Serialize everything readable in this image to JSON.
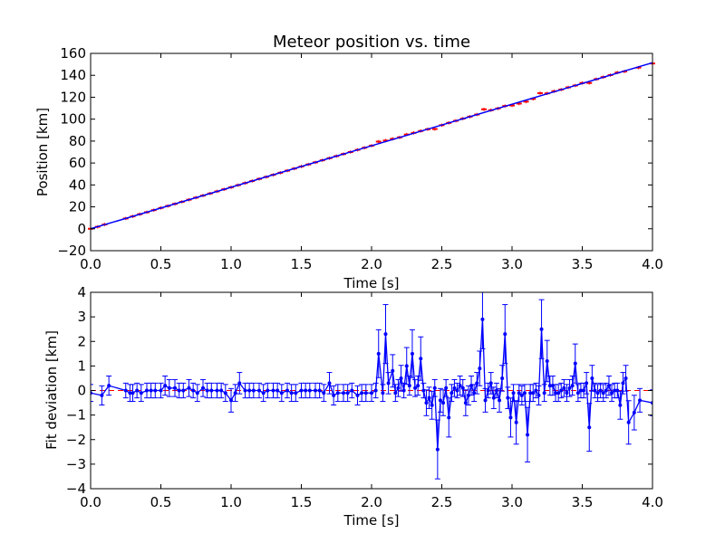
{
  "chart_data": [
    {
      "type": "line",
      "title": "Meteor position vs. time",
      "xlabel": "Time [s]",
      "ylabel": "Position [km]",
      "xlim": [
        0.0,
        4.0
      ],
      "ylim": [
        -20,
        160
      ],
      "xticks": [
        "0.0",
        "0.5",
        "1.0",
        "1.5",
        "2.0",
        "2.5",
        "3.0",
        "3.5",
        "4.0"
      ],
      "yticks": [
        "−20",
        "0",
        "20",
        "40",
        "60",
        "80",
        "100",
        "120",
        "140",
        "160"
      ],
      "grid": false,
      "series": [
        {
          "style": "fit-line",
          "color": "#0000ff",
          "x": [
            0.0,
            4.0
          ],
          "y": [
            0.0,
            151.5
          ]
        },
        {
          "style": "points-with-errorbars",
          "color": "#ff0000",
          "x": [
            0.0,
            0.05,
            0.1,
            0.25,
            0.3,
            0.35,
            0.4,
            0.45,
            0.5,
            0.55,
            0.6,
            0.65,
            0.7,
            0.75,
            0.8,
            0.85,
            0.9,
            0.95,
            1.0,
            1.05,
            1.1,
            1.15,
            1.2,
            1.25,
            1.3,
            1.35,
            1.4,
            1.45,
            1.5,
            1.55,
            1.6,
            1.65,
            1.7,
            1.75,
            1.8,
            1.85,
            1.9,
            1.95,
            2.0,
            2.05,
            2.1,
            2.15,
            2.2,
            2.25,
            2.3,
            2.35,
            2.4,
            2.45,
            2.5,
            2.55,
            2.6,
            2.65,
            2.7,
            2.75,
            2.8,
            2.85,
            2.9,
            2.95,
            3.0,
            3.05,
            3.1,
            3.15,
            3.2,
            3.25,
            3.3,
            3.35,
            3.4,
            3.45,
            3.5,
            3.55,
            3.6,
            3.65,
            3.7,
            3.75,
            3.8,
            3.9,
            4.0
          ],
          "y": [
            0.0,
            1.8,
            3.9,
            9.4,
            11.3,
            13.3,
            15.1,
            17.0,
            19.0,
            20.8,
            22.7,
            24.6,
            26.5,
            28.4,
            30.3,
            32.2,
            34.1,
            36.0,
            37.8,
            39.8,
            41.7,
            43.6,
            45.5,
            47.3,
            49.2,
            51.1,
            53.0,
            54.9,
            56.8,
            58.7,
            60.6,
            62.5,
            64.4,
            66.3,
            68.2,
            70.0,
            72.0,
            73.9,
            75.8,
            79.5,
            80.5,
            82.0,
            83.4,
            86.0,
            87.5,
            89.2,
            90.8,
            91.0,
            94.5,
            96.6,
            98.5,
            100.5,
            102.3,
            104.2,
            109.0,
            108.2,
            109.8,
            112.0,
            112.5,
            114.2,
            116.0,
            118.5,
            123.7,
            123.5,
            125.5,
            127.0,
            129.0,
            130.7,
            133.0,
            133.0,
            136.5,
            138.4,
            140.2,
            142.5,
            143.5,
            147.0,
            150.8
          ]
        }
      ]
    },
    {
      "type": "line",
      "title": "",
      "xlabel": "Time [s]",
      "ylabel": "Fit deviation [km]",
      "xlim": [
        0.0,
        4.0
      ],
      "ylim": [
        -4,
        4
      ],
      "xticks": [
        "0.0",
        "0.5",
        "1.0",
        "1.5",
        "2.0",
        "2.5",
        "3.0",
        "3.5",
        "4.0"
      ],
      "yticks": [
        "−4",
        "−3",
        "−2",
        "−1",
        "0",
        "1",
        "2",
        "3",
        "4"
      ],
      "grid": false,
      "reference_line": {
        "y": 0,
        "color": "#ff0000",
        "style": "dashed"
      },
      "series": [
        {
          "style": "line-with-errorbars",
          "color": "#0000ff",
          "x": [
            0.0,
            0.08,
            0.13,
            0.25,
            0.28,
            0.3,
            0.33,
            0.36,
            0.4,
            0.43,
            0.46,
            0.5,
            0.53,
            0.56,
            0.6,
            0.63,
            0.66,
            0.7,
            0.73,
            0.76,
            0.8,
            0.83,
            0.86,
            0.9,
            0.93,
            0.96,
            1.0,
            1.03,
            1.06,
            1.1,
            1.13,
            1.16,
            1.2,
            1.23,
            1.26,
            1.3,
            1.33,
            1.36,
            1.4,
            1.43,
            1.46,
            1.5,
            1.53,
            1.56,
            1.6,
            1.63,
            1.66,
            1.7,
            1.73,
            1.76,
            1.8,
            1.83,
            1.86,
            1.9,
            1.93,
            1.96,
            2.0,
            2.03,
            2.05,
            2.08,
            2.1,
            2.12,
            2.15,
            2.17,
            2.19,
            2.21,
            2.23,
            2.25,
            2.27,
            2.29,
            2.31,
            2.33,
            2.35,
            2.37,
            2.39,
            2.41,
            2.43,
            2.45,
            2.47,
            2.49,
            2.51,
            2.53,
            2.55,
            2.57,
            2.59,
            2.61,
            2.63,
            2.65,
            2.67,
            2.69,
            2.71,
            2.73,
            2.75,
            2.77,
            2.79,
            2.81,
            2.83,
            2.85,
            2.87,
            2.89,
            2.91,
            2.93,
            2.95,
            2.97,
            2.99,
            3.01,
            3.03,
            3.05,
            3.07,
            3.09,
            3.11,
            3.13,
            3.15,
            3.17,
            3.19,
            3.21,
            3.23,
            3.25,
            3.27,
            3.29,
            3.31,
            3.33,
            3.35,
            3.37,
            3.39,
            3.41,
            3.43,
            3.45,
            3.47,
            3.49,
            3.51,
            3.53,
            3.55,
            3.57,
            3.59,
            3.61,
            3.63,
            3.65,
            3.67,
            3.69,
            3.71,
            3.73,
            3.75,
            3.77,
            3.79,
            3.81,
            3.83,
            3.87,
            3.91,
            4.0
          ],
          "y": [
            -0.1,
            -0.2,
            0.2,
            0.0,
            -0.1,
            -0.1,
            0.0,
            -0.1,
            0.0,
            0.0,
            0.0,
            0.0,
            0.2,
            0.1,
            0.1,
            0.0,
            0.0,
            0.1,
            0.0,
            -0.1,
            0.1,
            0.0,
            0.0,
            0.0,
            0.0,
            -0.1,
            -0.4,
            -0.1,
            0.3,
            0.0,
            0.0,
            0.0,
            0.0,
            -0.1,
            0.0,
            0.0,
            0.0,
            -0.1,
            0.0,
            -0.1,
            -0.1,
            0.0,
            0.0,
            0.0,
            0.0,
            0.0,
            -0.1,
            0.3,
            -0.2,
            -0.1,
            -0.1,
            -0.1,
            0.0,
            -0.2,
            -0.1,
            -0.1,
            -0.1,
            0.0,
            1.5,
            -0.1,
            2.3,
            0.3,
            0.8,
            -0.1,
            0.1,
            0.5,
            0.0,
            1.0,
            0.2,
            1.5,
            0.1,
            0.2,
            1.3,
            0.0,
            -0.5,
            -0.3,
            -0.6,
            0.1,
            -2.4,
            -0.4,
            -0.5,
            0.1,
            -1.1,
            -0.1,
            0.1,
            0.0,
            0.2,
            0.1,
            -0.5,
            -0.2,
            0.2,
            -0.1,
            0.3,
            0.9,
            2.9,
            -0.4,
            0.0,
            0.3,
            -0.3,
            0.0,
            -0.4,
            0.5,
            2.3,
            -0.3,
            -1.1,
            -0.1,
            -1.3,
            -0.1,
            -0.2,
            -0.1,
            -1.8,
            -0.1,
            -0.1,
            0.0,
            -0.2,
            2.5,
            -0.1,
            1.2,
            0.2,
            0.2,
            -0.1,
            -0.1,
            0.0,
            0.1,
            -0.1,
            0.1,
            0.2,
            1.1,
            -0.1,
            0.0,
            0.0,
            0.3,
            -1.5,
            0.5,
            0.0,
            -0.1,
            0.0,
            -0.1,
            0.0,
            0.2,
            -0.1,
            0.0,
            0.0,
            -0.6,
            0.3,
            0.5,
            -1.3,
            -0.9,
            -0.4,
            -0.5
          ]
        }
      ]
    }
  ]
}
